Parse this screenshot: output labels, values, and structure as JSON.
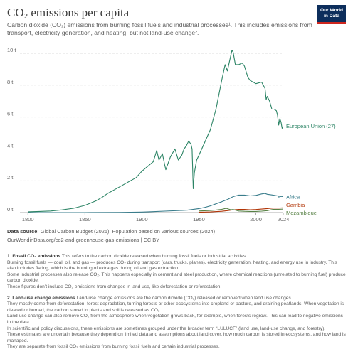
{
  "title": {
    "prefix": "CO",
    "sub": "2",
    "suffix": " emissions per capita"
  },
  "subtitle": "Carbon dioxide (CO₂) emissions from burning fossil fuels and industrial processes¹. This includes emissions from transport, electricity generation, and heating, but not land-use change².",
  "logo": {
    "line1": "Our World",
    "line2": "in Data"
  },
  "colors": {
    "eu": "#2c8465",
    "africa": "#3a7d8c",
    "gambia": "#b13507",
    "mozambique": "#578145",
    "grid": "#dddddd",
    "axis": "#666666"
  },
  "chart_data": {
    "type": "line",
    "title": "CO₂ emissions per capita",
    "xlim": [
      1793,
      2024
    ],
    "ylim": [
      0,
      10.5
    ],
    "x_ticks": [
      "1800",
      "1850",
      "1900",
      "1950",
      "2000",
      "2024"
    ],
    "y_ticks": [
      "0 t",
      "2 t",
      "4 t",
      "6 t",
      "8 t",
      "10 t"
    ],
    "grid": "horizontal dashed",
    "series": [
      {
        "name": "European Union (27)",
        "x": [
          1800,
          1810,
          1820,
          1830,
          1840,
          1850,
          1855,
          1860,
          1865,
          1870,
          1875,
          1880,
          1885,
          1890,
          1895,
          1900,
          1905,
          1910,
          1913,
          1915,
          1918,
          1920,
          1921,
          1925,
          1929,
          1932,
          1935,
          1937,
          1939,
          1941,
          1943,
          1944,
          1945,
          1946,
          1948,
          1950,
          1955,
          1960,
          1965,
          1970,
          1973,
          1975,
          1979,
          1980,
          1982,
          1985,
          1988,
          1990,
          1993,
          1995,
          2000,
          2005,
          2008,
          2009,
          2010,
          2012,
          2014,
          2016,
          2018,
          2019,
          2020,
          2021,
          2022,
          2023,
          2024
        ],
        "values": [
          0.05,
          0.07,
          0.1,
          0.17,
          0.27,
          0.45,
          0.6,
          0.75,
          0.95,
          1.2,
          1.4,
          1.6,
          1.8,
          2.0,
          2.2,
          2.6,
          2.9,
          3.2,
          3.9,
          3.3,
          3.7,
          3.0,
          2.7,
          3.5,
          4.0,
          3.3,
          3.6,
          4.0,
          4.2,
          4.5,
          4.3,
          4.0,
          1.5,
          2.5,
          3.3,
          3.6,
          4.4,
          5.2,
          6.5,
          8.3,
          9.3,
          8.9,
          10.2,
          10.1,
          9.3,
          9.3,
          9.4,
          9.2,
          8.5,
          8.3,
          8.1,
          8.2,
          7.8,
          7.1,
          7.3,
          7.0,
          6.5,
          6.5,
          6.4,
          6.1,
          5.5,
          5.9,
          5.7,
          5.3,
          5.4
        ]
      },
      {
        "name": "Africa",
        "x": [
          1800,
          1850,
          1880,
          1900,
          1910,
          1920,
          1930,
          1940,
          1950,
          1955,
          1960,
          1965,
          1970,
          1975,
          1980,
          1985,
          1990,
          1995,
          2000,
          2005,
          2008,
          2010,
          2015,
          2019,
          2020,
          2022,
          2024
        ],
        "values": [
          0.0,
          0.0,
          0.01,
          0.03,
          0.06,
          0.09,
          0.12,
          0.15,
          0.25,
          0.32,
          0.42,
          0.55,
          0.68,
          0.82,
          1.0,
          1.1,
          1.1,
          1.05,
          1.08,
          1.17,
          1.2,
          1.15,
          1.1,
          1.05,
          0.98,
          1.02,
          1.0
        ]
      },
      {
        "name": "Gambia",
        "x": [
          1950,
          1960,
          1970,
          1975,
          1980,
          1985,
          1990,
          1995,
          2000,
          2005,
          2010,
          2015,
          2020,
          2024
        ],
        "values": [
          0.02,
          0.04,
          0.08,
          0.12,
          0.17,
          0.2,
          0.2,
          0.18,
          0.19,
          0.22,
          0.25,
          0.28,
          0.28,
          0.3
        ]
      },
      {
        "name": "Mozambique",
        "x": [
          1950,
          1960,
          1965,
          1970,
          1974,
          1975,
          1978,
          1980,
          1985,
          1990,
          1995,
          2000,
          2005,
          2010,
          2015,
          2020,
          2024
        ],
        "values": [
          0.1,
          0.13,
          0.16,
          0.2,
          0.27,
          0.24,
          0.18,
          0.19,
          0.1,
          0.08,
          0.07,
          0.07,
          0.09,
          0.12,
          0.2,
          0.2,
          0.22
        ]
      }
    ]
  },
  "source": {
    "label": "Data source:",
    "text": " Global Carbon Budget (2025); Population based on various sources (2024)",
    "url": "OurWorldinData.org/co2-and-greenhouse-gas-emissions | CC BY"
  },
  "notes": {
    "n1_title": "1. Fossil CO₂ emissions",
    "n1_text": " This refers to the carbon dioxide released when burning fossil fuels or industrial activities.",
    "n1_p2": "Burning fossil fuels — coal, oil, and gas — produces CO₂ during transport (cars, trucks, planes), electricity generation, heating, and energy use in industry. This also includes flaring, which is the burning of extra gas during oil and gas extraction.",
    "n1_p3": "Some industrial processes also release CO₂. This happens especially in cement and steel production, where chemical reactions (unrelated to burning fuel) produce carbon dioxide.",
    "n1_p4": "These figures don’t include CO₂ emissions from changes in land use, like deforestation or reforestation.",
    "n2_title": "2. Land-use change emissions",
    "n2_text": " Land-use change emissions are the carbon dioxide (CO₂) released or removed when land use changes.",
    "n2_p2": "They mostly come from deforestation, forest degradation, turning forests or other ecosystems into cropland or pasture, and draining peatlands. When vegetation is cleared or burned, the carbon stored in plants and soil is released as CO₂.",
    "n2_p3": "Land-use change can also remove CO₂ from the atmosphere when vegetation grows back, for example, when forests regrow. This can lead to negative emissions in the data.",
    "n2_p4": "In scientific and policy discussions, these emissions are sometimes grouped under the broader term “LULUCF” (land use, land-use change, and forestry).",
    "n2_p5": "These estimates are uncertain because they depend on limited data and assumptions about land cover, how much carbon is stored in ecosystems, and how land is managed.",
    "n2_p6": "They are separate from fossil CO₂ emissions from burning fossil fuels and certain industrial processes."
  }
}
